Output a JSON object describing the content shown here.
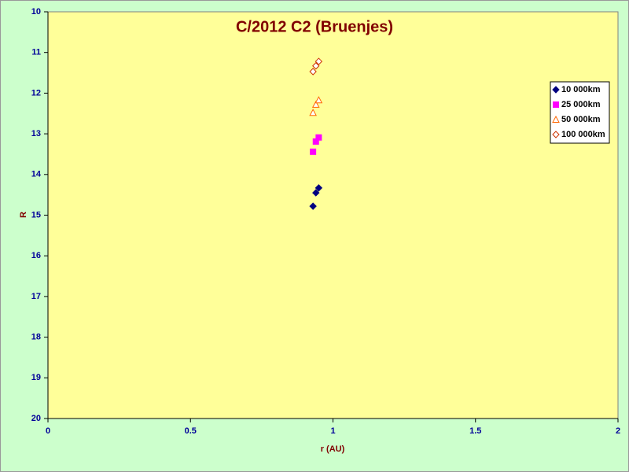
{
  "chart_data": {
    "type": "scatter",
    "title": "C/2012 C2 (Bruenjes)",
    "x_label": "r (AU)",
    "y_label": "R",
    "xlim": [
      0,
      2
    ],
    "xticks": [
      0,
      0.5,
      1,
      1.5,
      2
    ],
    "ylim": [
      20,
      10
    ],
    "yticks": [
      10,
      11,
      12,
      13,
      14,
      15,
      16,
      17,
      18,
      19,
      20
    ],
    "legend": "right",
    "series": [
      {
        "name": "10 000km",
        "color": "#000080",
        "marker": "diamond",
        "filled": true,
        "x": [
          0.93,
          0.94,
          0.95
        ],
        "values": [
          14.78,
          14.45,
          14.33
        ]
      },
      {
        "name": "25 000km",
        "color": "#ff00ff",
        "marker": "square",
        "filled": true,
        "x": [
          0.93,
          0.94,
          0.95
        ],
        "values": [
          13.44,
          13.19,
          13.09
        ]
      },
      {
        "name": "50 000km",
        "color": "#ff6600",
        "marker": "triangle",
        "filled": false,
        "x": [
          0.93,
          0.94,
          0.95
        ],
        "values": [
          12.48,
          12.28,
          12.17
        ]
      },
      {
        "name": "100 000km",
        "color": "#cc3300",
        "marker": "diamond",
        "filled": false,
        "x": [
          0.93,
          0.94,
          0.95
        ],
        "values": [
          11.47,
          11.33,
          11.22
        ]
      }
    ]
  }
}
